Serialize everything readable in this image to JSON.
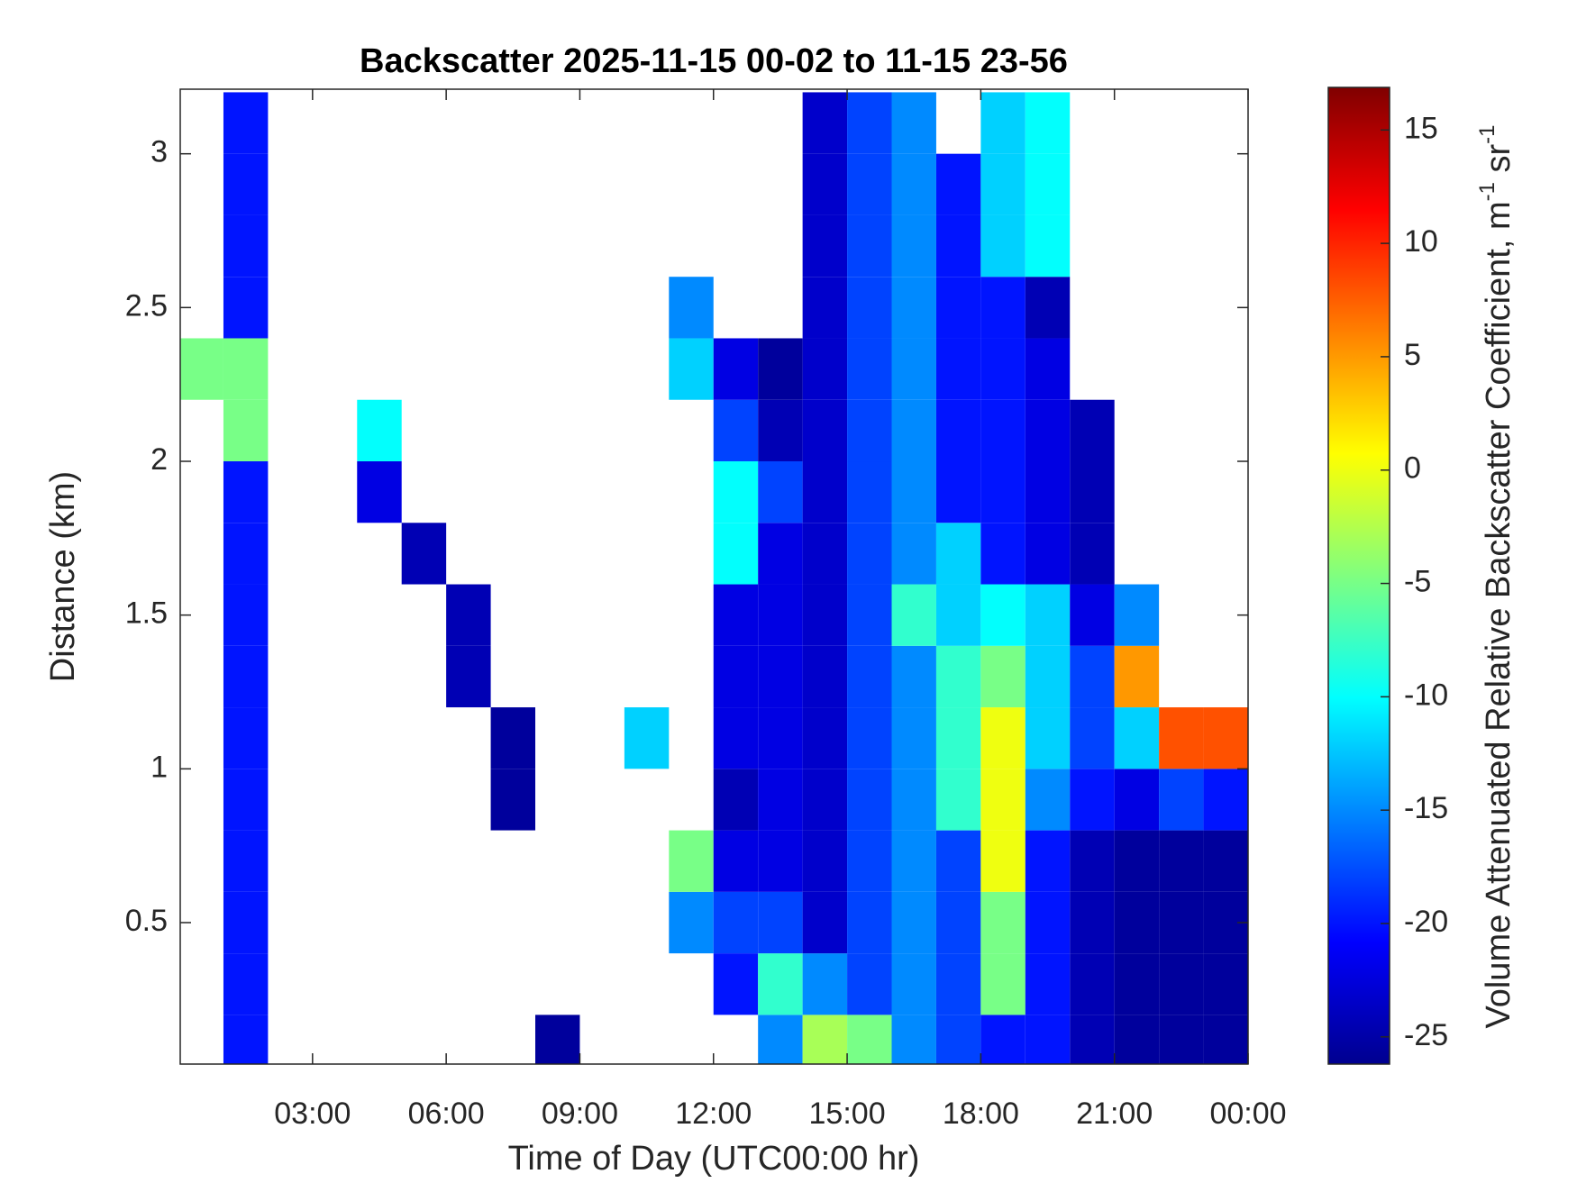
{
  "chart_data": {
    "type": "heatmap",
    "title": "Backscatter 2025-11-15 00-02 to 11-15 23-56",
    "xlabel": "Time of Day (UTC00:00 hr)",
    "ylabel": "Distance (km)",
    "colorbar_label": [
      "Volume Attenuated Relative Backscatter Coefficient, m",
      "-1",
      " sr",
      "-1"
    ],
    "colormap": "jet",
    "xlim": [
      0.03,
      24
    ],
    "xticks": [
      {
        "value": 3,
        "label": "03:00"
      },
      {
        "value": 6,
        "label": "06:00"
      },
      {
        "value": 9,
        "label": "09:00"
      },
      {
        "value": 12,
        "label": "12:00"
      },
      {
        "value": 15,
        "label": "15:00"
      },
      {
        "value": 18,
        "label": "18:00"
      },
      {
        "value": 21,
        "label": "21:00"
      },
      {
        "value": 24,
        "label": "00:00"
      }
    ],
    "ylim": [
      0.04,
      3.21
    ],
    "yticks": [
      0.5,
      1,
      1.5,
      2,
      2.5,
      3
    ],
    "clim": [
      -26.2,
      16.8
    ],
    "cticks": [
      -25,
      -20,
      -15,
      -10,
      -5,
      0,
      5,
      10,
      15
    ],
    "x": [
      0.5,
      1.5,
      2.5,
      3.5,
      4.5,
      5.5,
      6.5,
      7.5,
      8.5,
      9.5,
      10.5,
      11.5,
      12.5,
      13.5,
      14.5,
      15.5,
      16.5,
      17.5,
      18.5,
      19.5,
      20.5,
      21.5,
      22.5,
      23.5
    ],
    "y": [
      0.1,
      0.3,
      0.5,
      0.7,
      0.9,
      1.1,
      1.3,
      1.5,
      1.7,
      1.9,
      2.1,
      2.3,
      2.5,
      2.7,
      2.9,
      3.1
    ],
    "values": [
      [
        null,
        null,
        null,
        null,
        null,
        null,
        null,
        null,
        null,
        null,
        null,
        -5,
        null,
        null,
        null,
        null
      ],
      [
        -20,
        -20,
        -20,
        -20,
        -20,
        -20,
        -20,
        -20,
        -20,
        -20,
        -5,
        -5,
        -20,
        -20,
        -20,
        -20
      ],
      [
        null,
        null,
        null,
        null,
        null,
        null,
        null,
        null,
        null,
        null,
        null,
        null,
        null,
        null,
        null,
        null
      ],
      [
        null,
        null,
        null,
        null,
        null,
        null,
        null,
        null,
        null,
        null,
        null,
        null,
        null,
        null,
        null,
        null
      ],
      [
        null,
        null,
        null,
        null,
        null,
        null,
        null,
        null,
        null,
        -22,
        -10,
        null,
        null,
        null,
        null,
        null
      ],
      [
        null,
        null,
        null,
        null,
        null,
        null,
        null,
        null,
        -24,
        null,
        null,
        null,
        null,
        null,
        null,
        null
      ],
      [
        null,
        null,
        null,
        null,
        null,
        null,
        -24,
        -24,
        null,
        null,
        null,
        null,
        null,
        null,
        null,
        null
      ],
      [
        null,
        null,
        null,
        null,
        -25,
        -25,
        null,
        null,
        null,
        null,
        null,
        null,
        null,
        null,
        null,
        null
      ],
      [
        -25,
        null,
        null,
        null,
        null,
        null,
        null,
        null,
        null,
        null,
        null,
        null,
        null,
        null,
        null,
        null
      ],
      [
        null,
        null,
        null,
        null,
        null,
        null,
        null,
        null,
        null,
        null,
        null,
        null,
        null,
        null,
        null,
        null
      ],
      [
        null,
        null,
        null,
        null,
        null,
        -12,
        null,
        null,
        null,
        null,
        null,
        null,
        null,
        null,
        null,
        null
      ],
      [
        null,
        null,
        -15,
        -5,
        null,
        null,
        null,
        null,
        null,
        null,
        null,
        -12,
        -15,
        null,
        null,
        null
      ],
      [
        null,
        -20,
        -18,
        -22,
        -24,
        -22,
        -22,
        -22,
        -10,
        -10,
        -18,
        -22,
        null,
        null,
        null,
        null
      ],
      [
        -15,
        -8,
        -18,
        -22,
        -22,
        -22,
        -22,
        -22,
        -22,
        -18,
        -24,
        -25,
        null,
        null,
        null,
        null
      ],
      [
        -3,
        -15,
        -23,
        -23,
        -23,
        -23,
        -23,
        -23,
        -23,
        -23,
        -23,
        -23,
        -23,
        -23,
        -23,
        -23
      ],
      [
        -5,
        -18,
        -18,
        -18,
        -18,
        -18,
        -18,
        -18,
        -18,
        -18,
        -18,
        -18,
        -18,
        -18,
        -18,
        -18
      ],
      [
        -15,
        -15,
        -15,
        -15,
        -15,
        -15,
        -15,
        -8,
        -15,
        -15,
        -15,
        -15,
        -15,
        -15,
        -15,
        -15
      ],
      [
        -18,
        -18,
        -18,
        -18,
        -8,
        -8,
        -8,
        -12,
        -12,
        -20,
        -20,
        -20,
        -20,
        -20,
        -20,
        null
      ],
      [
        -20,
        -5,
        -5,
        0,
        0,
        0,
        -5,
        -10,
        -20,
        -20,
        -20,
        -20,
        -20,
        -12,
        -12,
        -12
      ],
      [
        -20,
        -20,
        -20,
        -20,
        -15,
        -12,
        -12,
        -12,
        -22,
        -22,
        -22,
        -22,
        -24,
        -10,
        -10,
        -10
      ],
      [
        -24,
        -24,
        -24,
        -24,
        -20,
        -18,
        -18,
        -22,
        -24,
        -24,
        -24,
        null,
        null,
        null,
        null,
        null
      ],
      [
        -25,
        -25,
        -25,
        -25,
        -22,
        -12,
        5,
        -15,
        null,
        null,
        null,
        null,
        null,
        null,
        null,
        null
      ],
      [
        -25,
        -25,
        -25,
        -25,
        -18,
        8,
        null,
        null,
        null,
        null,
        null,
        null,
        null,
        null,
        null,
        null
      ],
      [
        -25,
        -25,
        -25,
        -25,
        -20,
        8,
        null,
        null,
        null,
        null,
        null,
        null,
        null,
        null,
        null,
        null
      ]
    ]
  }
}
